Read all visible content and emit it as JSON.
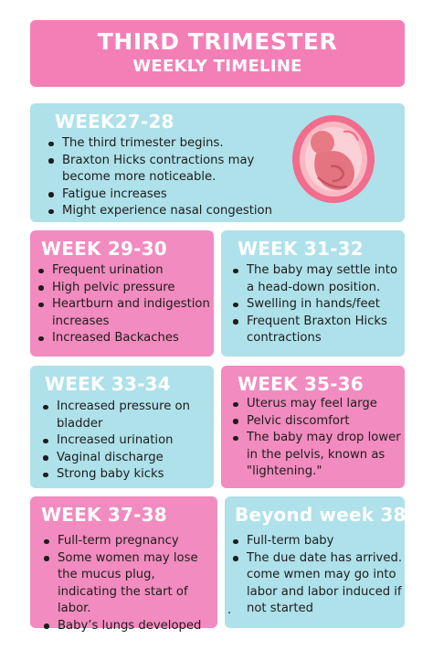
{
  "header": {
    "title": "THIRD TRIMESTER",
    "subtitle": "WEEKLY TIMELINE"
  },
  "colors": {
    "pink": "#f28bbf",
    "header_pink": "#f47fb6",
    "blue": "#aee1ea",
    "white": "#ffffff"
  },
  "cards": [
    {
      "title": "WEEK27-28",
      "items": [
        "The third trimester begins.",
        "Braxton Hicks contractions may become more noticeable.",
        "Fatigue increases",
        "Might experience nasal congestion"
      ],
      "image": "fetus-in-womb-illustration"
    },
    {
      "title": "WEEK 29-30",
      "items": [
        "Frequent urination",
        "High pelvic pressure",
        "Heartburn and indigestion increases",
        "Increased Backaches"
      ]
    },
    {
      "title": "WEEK 31-32",
      "items": [
        "The baby may settle into a head-down position.",
        "Swelling in hands/feet",
        "Frequent Braxton Hicks contractions"
      ]
    },
    {
      "title": "WEEK 33-34",
      "items": [
        "Increased pressure on bladder",
        "Increased urination",
        "Vaginal discharge",
        "Strong baby kicks"
      ]
    },
    {
      "title": "WEEK 35-36",
      "items": [
        "Uterus may feel large",
        "Pelvic discomfort",
        "The baby may drop lower in  the pelvis, known as \"lightening.\""
      ]
    },
    {
      "title": "WEEK 37-38",
      "items": [
        "Full-term pregnancy",
        "Some women may lose the mucus plug, indicating the start of labor.",
        "Baby’s lungs developed"
      ]
    },
    {
      "title": "Beyond week 38",
      "items": [
        "Full-term baby",
        "The due date has arrived."
      ],
      "extra": [
        "come wmen may go into",
        "labor and labor induced if",
        "not started"
      ],
      "extra_mark": "."
    }
  ]
}
